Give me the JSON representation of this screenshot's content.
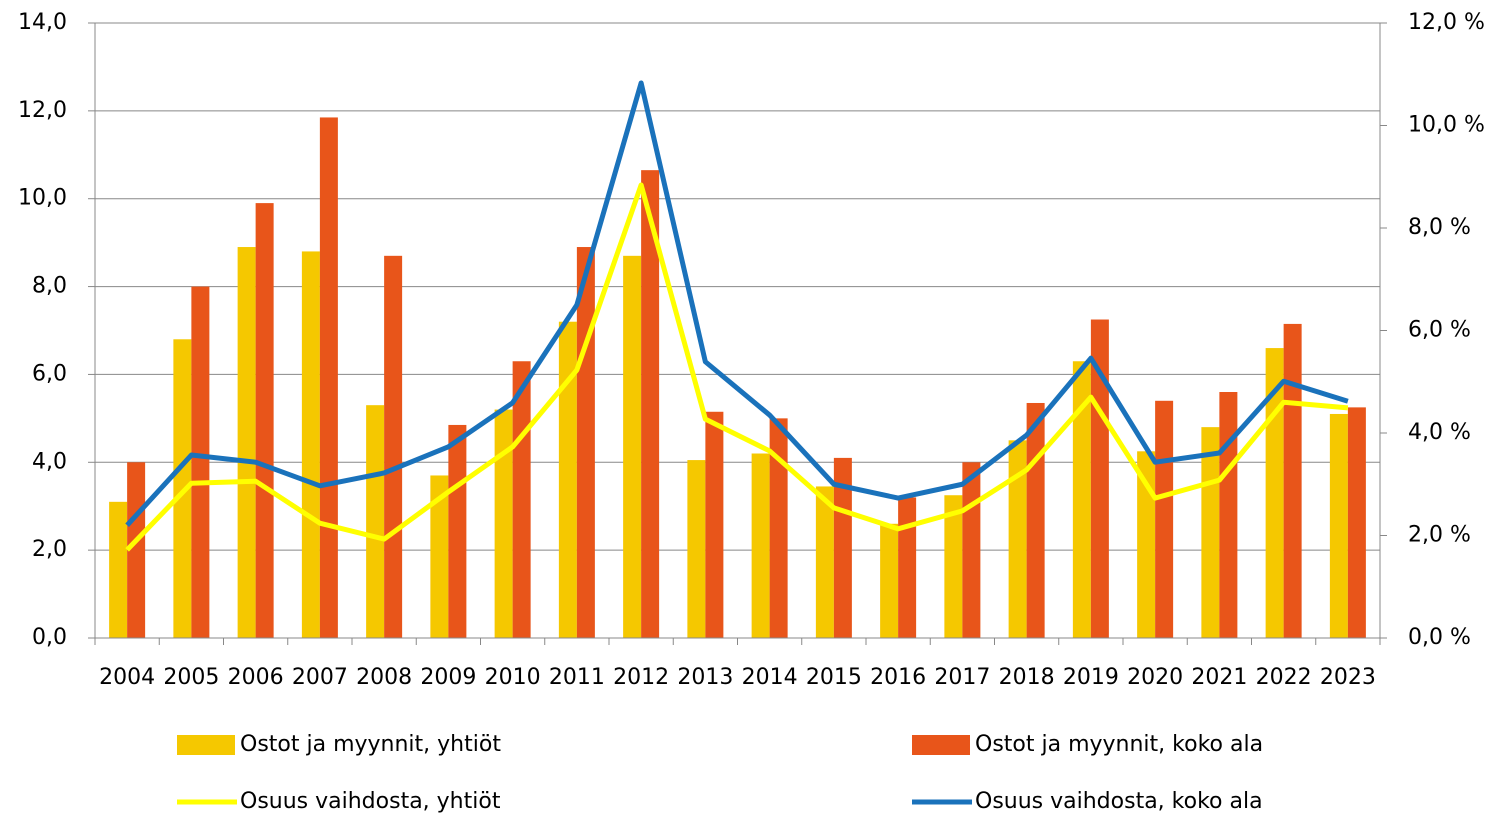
{
  "chart_data": {
    "type": "combo",
    "categories": [
      "2004",
      "2005",
      "2006",
      "2007",
      "2008",
      "2009",
      "2010",
      "2011",
      "2012",
      "2013",
      "2014",
      "2015",
      "2016",
      "2017",
      "2018",
      "2019",
      "2020",
      "2021",
      "2022",
      "2023"
    ],
    "series": [
      {
        "name": "Ostot ja myynnit, yhtiöt",
        "type": "bar",
        "color": "#f5c800",
        "values": [
          3.1,
          6.8,
          8.9,
          8.8,
          5.3,
          3.7,
          5.2,
          7.2,
          8.7,
          4.05,
          4.2,
          3.45,
          2.6,
          3.25,
          4.5,
          6.3,
          4.25,
          4.8,
          6.6,
          5.1
        ]
      },
      {
        "name": "Ostot ja myynnit, koko ala",
        "type": "bar",
        "color": "#e8551a",
        "values": [
          4.0,
          8.0,
          9.9,
          11.85,
          8.7,
          4.85,
          6.3,
          8.9,
          10.65,
          5.15,
          5.0,
          4.1,
          3.2,
          4.0,
          5.35,
          7.25,
          5.4,
          5.6,
          7.15,
          5.25
        ]
      },
      {
        "name": "Osuus vaihdosta, yhtiöt",
        "type": "line",
        "axis": "y2",
        "color": "#ffff00",
        "values": [
          1.72,
          3.02,
          3.06,
          2.24,
          1.93,
          2.85,
          3.73,
          5.23,
          8.84,
          4.27,
          3.65,
          2.54,
          2.13,
          2.48,
          3.28,
          4.7,
          2.73,
          3.08,
          4.6,
          4.49
        ]
      },
      {
        "name": "Osuus vaihdosta, koko ala",
        "type": "line",
        "axis": "y2",
        "color": "#1a72bb",
        "values": [
          2.2,
          3.57,
          3.43,
          2.97,
          3.22,
          3.73,
          4.59,
          6.5,
          10.83,
          5.39,
          4.35,
          3.0,
          2.73,
          3.0,
          3.96,
          5.46,
          3.43,
          3.61,
          5.01,
          4.62
        ]
      }
    ],
    "ylim": [
      0,
      14
    ],
    "yticks": [
      {
        "value": 0,
        "label": "0,0"
      },
      {
        "value": 2,
        "label": "2,0"
      },
      {
        "value": 4,
        "label": "4,0"
      },
      {
        "value": 6,
        "label": "6,0"
      },
      {
        "value": 8,
        "label": "8,0"
      },
      {
        "value": 10,
        "label": "10,0"
      },
      {
        "value": 12,
        "label": "12,0"
      },
      {
        "value": 14,
        "label": "14,0"
      }
    ],
    "y2lim": [
      0,
      12
    ],
    "y2ticks": [
      {
        "value": 0,
        "label": "0,0 %"
      },
      {
        "value": 2,
        "label": "2,0 %"
      },
      {
        "value": 4,
        "label": "4,0 %"
      },
      {
        "value": 6,
        "label": "6,0 %"
      },
      {
        "value": 8,
        "label": "8,0 %"
      },
      {
        "value": 10,
        "label": "10,0 %"
      },
      {
        "value": 12,
        "label": "12,0 %"
      }
    ],
    "grid": true
  }
}
